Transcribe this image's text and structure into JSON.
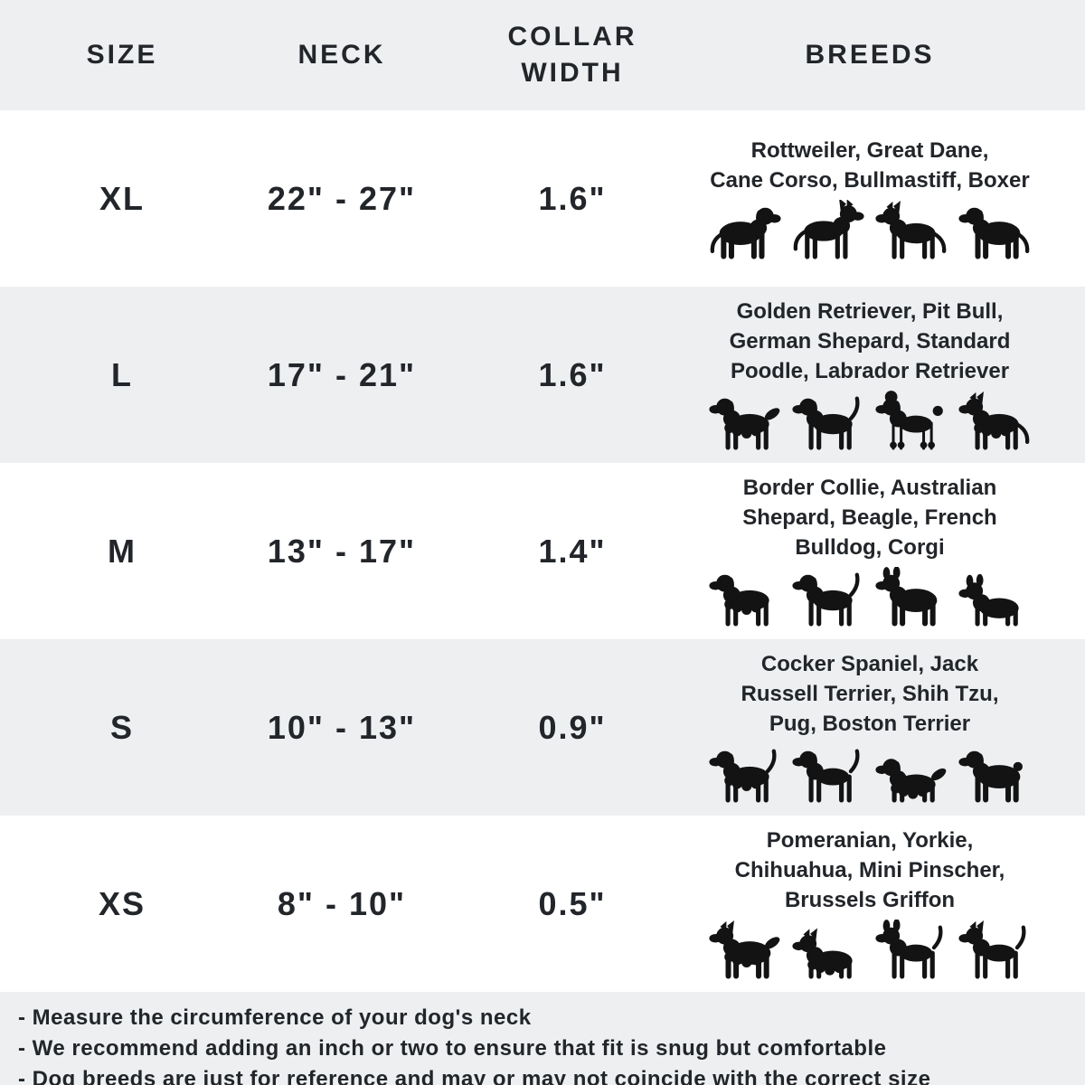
{
  "header": {
    "columns": [
      "SIZE",
      "NECK",
      "COLLAR WIDTH",
      "BREEDS"
    ]
  },
  "table": {
    "rows": [
      {
        "size": "XL",
        "neck": "22\" - 27\"",
        "collar_width": "1.6\"",
        "breeds_lines": [
          "Rottweiler, Great Dane,",
          "Cane Corso, Bullmastiff, Boxer"
        ],
        "icons": [
          "rottweiler-icon",
          "great-dane-icon",
          "cane-corso-icon",
          "bullmastiff-icon"
        ]
      },
      {
        "size": "L",
        "neck": "17\" - 21\"",
        "collar_width": "1.6\"",
        "breeds_lines": [
          "Golden Retriever, Pit Bull,",
          "German Shepard, Standard",
          "Poodle, Labrador Retriever"
        ],
        "icons": [
          "golden-retriever-icon",
          "labrador-retriever-icon",
          "poodle-icon",
          "german-shepherd-icon"
        ]
      },
      {
        "size": "M",
        "neck": "13\" - 17\"",
        "collar_width": "1.4\"",
        "breeds_lines": [
          "Border Collie, Australian",
          "Shepard, Beagle, French",
          "Bulldog, Corgi"
        ],
        "icons": [
          "australian-shepherd-icon",
          "beagle-icon",
          "french-bulldog-icon",
          "corgi-icon"
        ]
      },
      {
        "size": "S",
        "neck": "10\" - 13\"",
        "collar_width": "0.9\"",
        "breeds_lines": [
          "Cocker Spaniel, Jack",
          "Russell Terrier, Shih Tzu,",
          "Pug, Boston Terrier"
        ],
        "icons": [
          "cocker-spaniel-icon",
          "jack-russell-terrier-icon",
          "shih-tzu-icon",
          "pug-icon"
        ]
      },
      {
        "size": "XS",
        "neck": "8\" - 10\"",
        "collar_width": "0.5\"",
        "breeds_lines": [
          "Pomeranian, Yorkie,",
          "Chihuahua, Mini Pinscher,",
          "Brussels Griffon"
        ],
        "icons": [
          "pomeranian-icon",
          "yorkie-icon",
          "chihuahua-icon",
          "miniature-pinscher-icon"
        ]
      }
    ]
  },
  "notes": [
    "- Measure the circumference of your dog's neck",
    "- We recommend adding an inch or two to ensure that fit is snug but comfortable",
    "- Dog breeds are just for reference and may or may not coincide with the correct size"
  ],
  "colors": {
    "stripe": "#edeff1",
    "background": "#ffffff",
    "text": "#222529",
    "icon": "#131313"
  }
}
